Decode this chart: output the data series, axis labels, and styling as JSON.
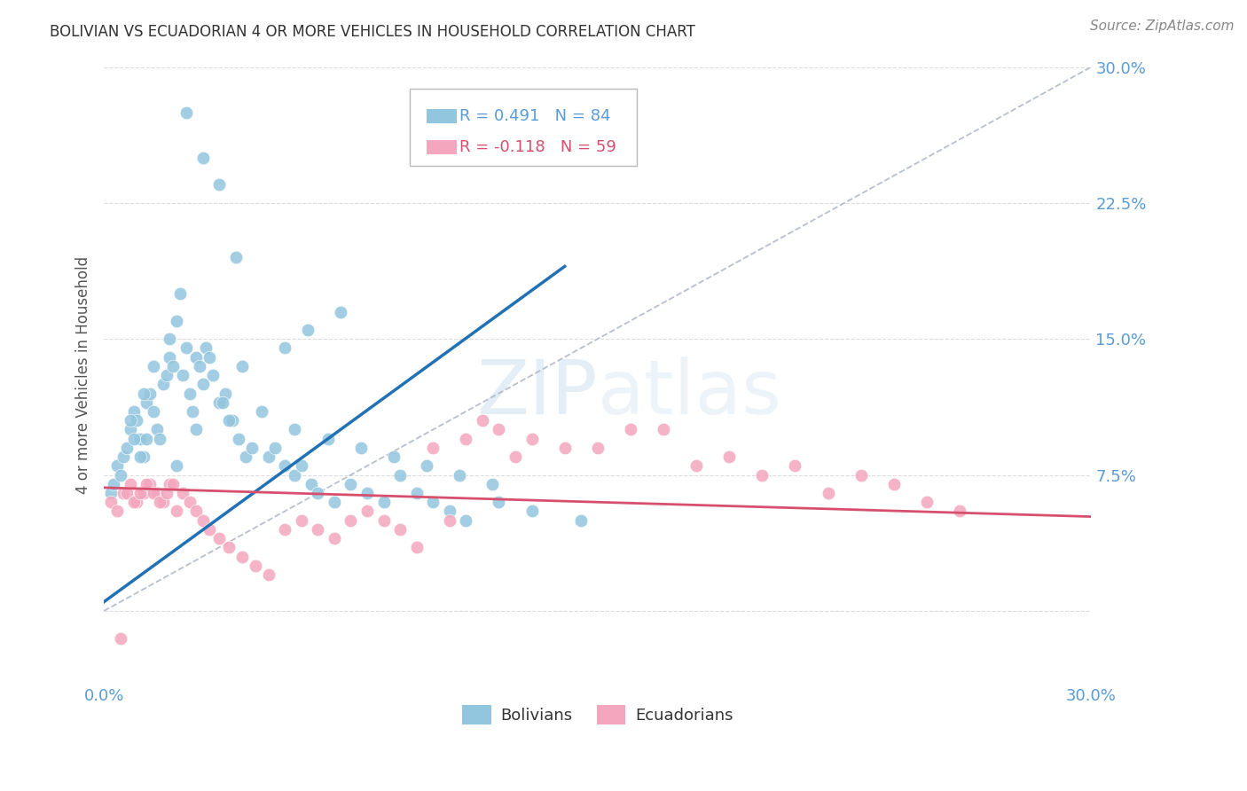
{
  "title": "BOLIVIAN VS ECUADORIAN 4 OR MORE VEHICLES IN HOUSEHOLD CORRELATION CHART",
  "source": "Source: ZipAtlas.com",
  "ylabel": "4 or more Vehicles in Household",
  "xmin": 0.0,
  "xmax": 30.0,
  "ymin": -4.0,
  "ymax": 30.0,
  "yticks": [
    0.0,
    7.5,
    15.0,
    22.5,
    30.0
  ],
  "ytick_labels": [
    "",
    "7.5%",
    "15.0%",
    "22.5%",
    "30.0%"
  ],
  "xtick_labels_show": [
    "0.0%",
    "30.0%"
  ],
  "legend_bolivians": "Bolivians",
  "legend_ecuadorians": "Ecuadorians",
  "r_bolivian": 0.491,
  "n_bolivian": 84,
  "r_ecuadorian": -0.118,
  "n_ecuadorian": 59,
  "blue_color": "#92c5de",
  "blue_line_color": "#2171b5",
  "pink_color": "#f4a6be",
  "pink_line_color": "#d6506e",
  "label_color": "#5b9bd5",
  "background_color": "#ffffff",
  "grid_color": "#cccccc",
  "bol_line_x0": 0.0,
  "bol_line_y0": 0.5,
  "bol_line_x1": 14.0,
  "bol_line_y1": 19.0,
  "ecu_line_x0": 0.0,
  "ecu_line_y0": 6.8,
  "ecu_line_x1": 30.0,
  "ecu_line_y1": 5.2,
  "bolivian_x": [
    0.2,
    0.3,
    0.4,
    0.5,
    0.6,
    0.7,
    0.8,
    0.9,
    1.0,
    1.1,
    1.2,
    1.3,
    1.4,
    1.5,
    1.6,
    1.7,
    1.8,
    1.9,
    2.0,
    2.1,
    2.2,
    2.3,
    2.4,
    2.5,
    2.6,
    2.7,
    2.8,
    2.9,
    3.0,
    3.1,
    3.2,
    3.3,
    3.5,
    3.7,
    3.9,
    4.1,
    4.3,
    4.5,
    5.0,
    5.2,
    5.5,
    5.8,
    6.0,
    6.3,
    6.5,
    7.0,
    7.5,
    8.0,
    8.5,
    9.0,
    9.5,
    10.0,
    10.5,
    11.0,
    12.0,
    13.0,
    14.5,
    3.8,
    4.8,
    5.8,
    6.8,
    7.8,
    8.8,
    9.8,
    10.8,
    11.8,
    2.5,
    3.0,
    3.5,
    4.0,
    2.0,
    1.5,
    1.2,
    0.8,
    0.9,
    1.1,
    1.3,
    2.2,
    2.8,
    3.6,
    4.2,
    5.5,
    6.2,
    7.2
  ],
  "bolivian_y": [
    6.5,
    7.0,
    8.0,
    7.5,
    8.5,
    9.0,
    10.0,
    11.0,
    10.5,
    9.5,
    8.5,
    11.5,
    12.0,
    11.0,
    10.0,
    9.5,
    12.5,
    13.0,
    14.0,
    13.5,
    16.0,
    17.5,
    13.0,
    14.5,
    12.0,
    11.0,
    14.0,
    13.5,
    12.5,
    14.5,
    14.0,
    13.0,
    11.5,
    12.0,
    10.5,
    9.5,
    8.5,
    9.0,
    8.5,
    9.0,
    8.0,
    7.5,
    8.0,
    7.0,
    6.5,
    6.0,
    7.0,
    6.5,
    6.0,
    7.5,
    6.5,
    6.0,
    5.5,
    5.0,
    6.0,
    5.5,
    5.0,
    10.5,
    11.0,
    10.0,
    9.5,
    9.0,
    8.5,
    8.0,
    7.5,
    7.0,
    27.5,
    25.0,
    23.5,
    19.5,
    15.0,
    13.5,
    12.0,
    10.5,
    9.5,
    8.5,
    9.5,
    8.0,
    10.0,
    11.5,
    13.5,
    14.5,
    15.5,
    16.5
  ],
  "ecuadorian_x": [
    0.2,
    0.4,
    0.6,
    0.8,
    1.0,
    1.2,
    1.4,
    1.6,
    1.8,
    2.0,
    2.2,
    2.4,
    2.6,
    2.8,
    3.0,
    3.2,
    3.5,
    3.8,
    4.2,
    4.6,
    5.0,
    5.5,
    6.0,
    6.5,
    7.0,
    7.5,
    8.0,
    8.5,
    9.0,
    9.5,
    10.0,
    10.5,
    11.0,
    11.5,
    12.0,
    12.5,
    13.0,
    14.0,
    15.0,
    16.0,
    17.0,
    18.0,
    19.0,
    20.0,
    21.0,
    22.0,
    23.0,
    24.0,
    25.0,
    26.0,
    0.5,
    0.7,
    0.9,
    1.1,
    1.3,
    1.5,
    1.7,
    1.9,
    2.1
  ],
  "ecuadorian_y": [
    6.0,
    5.5,
    6.5,
    7.0,
    6.0,
    6.5,
    7.0,
    6.5,
    6.0,
    7.0,
    5.5,
    6.5,
    6.0,
    5.5,
    5.0,
    4.5,
    4.0,
    3.5,
    3.0,
    2.5,
    2.0,
    4.5,
    5.0,
    4.5,
    4.0,
    5.0,
    5.5,
    5.0,
    4.5,
    3.5,
    9.0,
    5.0,
    9.5,
    10.5,
    10.0,
    8.5,
    9.5,
    9.0,
    9.0,
    10.0,
    10.0,
    8.0,
    8.5,
    7.5,
    8.0,
    6.5,
    7.5,
    7.0,
    6.0,
    5.5,
    -1.5,
    6.5,
    6.0,
    6.5,
    7.0,
    6.5,
    6.0,
    6.5,
    7.0
  ]
}
